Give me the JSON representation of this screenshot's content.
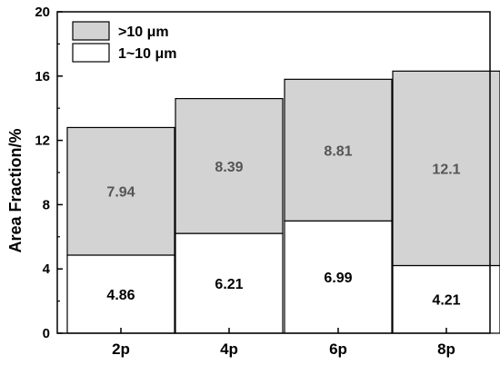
{
  "chart_data": {
    "type": "bar",
    "stacked": true,
    "categories": [
      "2p",
      "4p",
      "6p",
      "8p"
    ],
    "series": [
      {
        "name": "1~10 μm",
        "values": [
          4.86,
          6.21,
          6.99,
          4.21
        ],
        "labels": [
          "4.86",
          "6.21",
          "6.99",
          "4.21"
        ],
        "color": "#ffffff",
        "label_color": "#000000"
      },
      {
        "name": ">10 μm",
        "values": [
          7.94,
          8.39,
          8.81,
          12.1
        ],
        "labels": [
          "7.94",
          "8.39",
          "8.81",
          "12.1"
        ],
        "color": "#d3d3d3",
        "label_color": "#555555"
      }
    ],
    "title": "",
    "xlabel": "",
    "ylabel": "Area Fraction/%",
    "ylim": [
      0,
      20
    ],
    "yticks": [
      0,
      4,
      8,
      12,
      16,
      20
    ],
    "ytick_labels": [
      "0",
      "4",
      "8",
      "12",
      "16",
      "20"
    ],
    "grid": false,
    "legend_position": "top-left",
    "legend_order": [
      ">10 μm",
      "1~10 μm"
    ]
  }
}
